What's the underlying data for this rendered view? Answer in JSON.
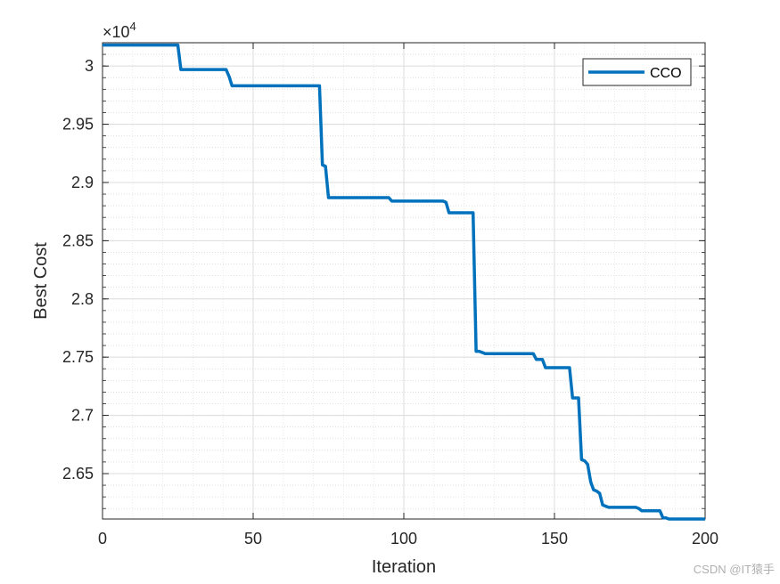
{
  "chart_data": {
    "type": "line",
    "xlabel": "Iteration",
    "ylabel": "Best Cost",
    "y_exponent_label": "×10",
    "y_exponent_power": "4",
    "xlim": [
      0,
      200
    ],
    "ylim": [
      2.611,
      3.02
    ],
    "x_ticks": [
      0,
      50,
      100,
      150,
      200
    ],
    "x_tick_labels": [
      "0",
      "50",
      "100",
      "150",
      "200"
    ],
    "y_ticks": [
      2.65,
      2.7,
      2.75,
      2.8,
      2.85,
      2.9,
      2.95,
      3.0
    ],
    "y_tick_labels": [
      "2.65",
      "2.7",
      "2.75",
      "2.8",
      "2.85",
      "2.9",
      "2.95",
      "3"
    ],
    "grid": true,
    "minor_grid": true,
    "legend_position": "top-right",
    "series": [
      {
        "name": "CCO",
        "color": "#0072BD",
        "x": [
          0,
          25,
          26,
          41,
          42,
          43,
          71,
          72,
          73,
          74,
          75,
          95,
          96,
          113,
          114,
          115,
          123,
          124,
          125,
          126,
          127,
          143,
          144,
          145,
          146,
          147,
          155,
          156,
          157,
          158,
          159,
          160,
          161,
          162,
          163,
          164,
          165,
          166,
          167,
          168,
          177,
          178,
          179,
          185,
          186,
          187,
          188,
          190,
          200
        ],
        "y": [
          3.018,
          3.018,
          2.997,
          2.997,
          2.991,
          2.983,
          2.983,
          2.983,
          2.915,
          2.914,
          2.887,
          2.887,
          2.884,
          2.884,
          2.883,
          2.874,
          2.874,
          2.755,
          2.755,
          2.754,
          2.753,
          2.753,
          2.748,
          2.748,
          2.748,
          2.741,
          2.741,
          2.715,
          2.715,
          2.715,
          2.662,
          2.661,
          2.658,
          2.643,
          2.636,
          2.635,
          2.633,
          2.623,
          2.622,
          2.621,
          2.621,
          2.62,
          2.618,
          2.618,
          2.612,
          2.612,
          2.611,
          2.611,
          2.611
        ]
      }
    ]
  },
  "watermark": "CSDN @IT猿手"
}
